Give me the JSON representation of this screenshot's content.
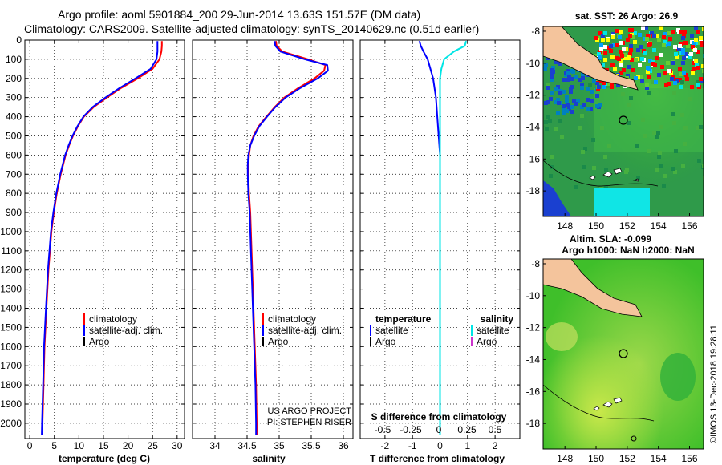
{
  "title": {
    "line1": "Argo profile: aoml 5901884_200 29-Jun-2014 13.63S 151.57E (DM data)",
    "line2": "Climatology: CARS2009. Satellite-adjusted climatology: synTS_20140629.nc (0.51d earlier)"
  },
  "depth_ticks": [
    "0",
    "100",
    "200",
    "300",
    "400",
    "500",
    "600",
    "700",
    "800",
    "900",
    "1000",
    "1100",
    "1200",
    "1300",
    "1400",
    "1500",
    "1600",
    "1700",
    "1800",
    "1900",
    "2000"
  ],
  "colors": {
    "climatology": "#ff0000",
    "satellite": "#0000ff",
    "argo": "#000000",
    "s_satellite": "#00e5e5",
    "s_argo": "#cc33cc",
    "land": "#f4c49c"
  },
  "chart_data": [
    {
      "type": "line",
      "name": "temperature-panel",
      "xlabel": "temperature (deg C)",
      "xlim": [
        -1,
        31.5
      ],
      "ylim": [
        2080,
        0
      ],
      "xticks": [
        "0",
        "5",
        "10",
        "15",
        "20",
        "25",
        "30"
      ],
      "xtick_values": [
        0,
        5,
        10,
        15,
        20,
        25,
        30
      ],
      "legend": [
        "climatology",
        "satellite-adj. clim.",
        "Argo"
      ],
      "depth": [
        5,
        30,
        60,
        100,
        150,
        200,
        250,
        300,
        350,
        400,
        450,
        500,
        550,
        600,
        700,
        800,
        900,
        1000,
        1200,
        1400,
        1600,
        1800,
        2000,
        2060
      ],
      "series": [
        {
          "name": "climatology",
          "color": "#ff0000",
          "values": [
            26.9,
            26.9,
            26.8,
            26.4,
            25.0,
            22.0,
            18.6,
            15.7,
            13.0,
            11.0,
            9.8,
            8.8,
            8.0,
            7.3,
            6.3,
            5.5,
            4.9,
            4.4,
            3.8,
            3.4,
            3.0,
            2.8,
            2.6,
            2.55
          ]
        },
        {
          "name": "satellite-adj. clim.",
          "color": "#0000ff",
          "values": [
            26.0,
            26.0,
            26.0,
            25.8,
            24.6,
            21.5,
            18.3,
            15.4,
            12.8,
            10.9,
            9.7,
            8.7,
            7.9,
            7.2,
            6.2,
            5.4,
            4.8,
            4.3,
            3.7,
            3.3,
            2.9,
            2.7,
            2.5,
            2.45
          ]
        }
      ]
    },
    {
      "type": "line",
      "name": "salinity-panel",
      "xlabel": "salinity",
      "xlim": [
        33.65,
        36.15
      ],
      "ylim": [
        2080,
        0
      ],
      "xticks": [
        "34",
        "34.5",
        "35",
        "35.5",
        "36"
      ],
      "xtick_values": [
        34,
        34.5,
        35,
        35.5,
        36
      ],
      "legend": [
        "climatology",
        "satellite-adj. clim.",
        "Argo"
      ],
      "annotation": [
        "US ARGO PROJECT",
        "PI: STEPHEN RISER"
      ],
      "depth": [
        5,
        30,
        60,
        100,
        130,
        160,
        200,
        250,
        300,
        350,
        400,
        450,
        500,
        550,
        600,
        650,
        700,
        800,
        900,
        1000,
        1200,
        1400,
        1600,
        1800,
        2000,
        2060
      ],
      "series": [
        {
          "name": "climatology",
          "color": "#ff0000",
          "values": [
            34.95,
            34.96,
            35.05,
            35.45,
            35.72,
            35.7,
            35.55,
            35.3,
            35.08,
            34.93,
            34.8,
            34.68,
            34.6,
            34.55,
            34.53,
            34.52,
            34.52,
            34.53,
            34.55,
            34.56,
            34.58,
            34.6,
            34.62,
            34.64,
            34.65,
            34.65
          ]
        },
        {
          "name": "satellite-adj. clim.",
          "color": "#0000ff",
          "values": [
            34.93,
            34.94,
            35.02,
            35.4,
            35.75,
            35.76,
            35.6,
            35.33,
            35.1,
            34.94,
            34.81,
            34.69,
            34.61,
            34.55,
            34.52,
            34.51,
            34.51,
            34.52,
            34.54,
            34.55,
            34.57,
            34.59,
            34.61,
            34.63,
            34.64,
            34.64
          ]
        }
      ]
    },
    {
      "type": "line",
      "name": "difference-panel",
      "xlabel": "T difference from climatology",
      "top_axis_label": "S difference from climatology",
      "xlim": [
        -2.9,
        2.9
      ],
      "ylim": [
        2080,
        0
      ],
      "xticks": [
        "-2",
        "-1",
        "0",
        "1",
        "2"
      ],
      "xtick_values": [
        -2,
        -1,
        0,
        1,
        2
      ],
      "top_ticks": [
        "-0.5",
        "-0.25",
        "0",
        "0.25",
        "0.5"
      ],
      "top_tick_values": [
        -0.5,
        -0.25,
        0,
        0.25,
        0.5
      ],
      "legend_left": [
        "temperature",
        "satellite",
        "Argo"
      ],
      "legend_right": [
        "salinity",
        "satellite",
        "Argo"
      ],
      "depth": [
        5,
        30,
        60,
        100,
        150,
        200,
        300,
        400,
        500,
        600,
        700,
        800,
        900,
        1000,
        1200,
        1400,
        1600,
        1800,
        2000,
        2060
      ],
      "series": [
        {
          "name": "T satellite",
          "color": "#0000ff",
          "values": [
            -0.75,
            -0.7,
            -0.6,
            -0.45,
            -0.35,
            -0.25,
            -0.15,
            -0.1,
            -0.05,
            0.0,
            0.0,
            0.0,
            0.0,
            0.0,
            0.0,
            0.0,
            0.0,
            0.0,
            0.0,
            0.0
          ]
        },
        {
          "name": "S satellite",
          "color": "#00e5e5",
          "values": [
            0.95,
            0.9,
            0.5,
            0.15,
            0.05,
            0.0,
            0.0,
            0.0,
            0.0,
            0.0,
            0.0,
            0.0,
            0.0,
            0.0,
            0.0,
            0.0,
            0.0,
            0.0,
            0.0,
            0.0
          ]
        }
      ]
    },
    {
      "type": "heatmap",
      "name": "sst-map",
      "title": "sat. SST: 26 Argo: 26.9",
      "xticks": [
        "148",
        "150",
        "152",
        "154",
        "156"
      ],
      "xtick_values": [
        148,
        150,
        152,
        154,
        156
      ],
      "yticks": [
        "-8",
        "-10",
        "-12",
        "-14",
        "-16",
        "-18"
      ],
      "ytick_values": [
        -8,
        -10,
        -12,
        -14,
        -16,
        -18
      ],
      "xlim": [
        146.6,
        156.9
      ],
      "ylim": [
        -19.6,
        -7.7
      ],
      "argo_position": [
        151.57,
        -13.63
      ]
    },
    {
      "type": "heatmap",
      "name": "sla-map",
      "title": "Altim. SLA: -0.099",
      "subtitle": "Argo h1000: NaN h2000: NaN",
      "xticks": [
        "148",
        "150",
        "152",
        "154",
        "156"
      ],
      "xtick_values": [
        148,
        150,
        152,
        154,
        156
      ],
      "yticks": [
        "-8",
        "-10",
        "-12",
        "-14",
        "-16",
        "-18"
      ],
      "ytick_values": [
        -8,
        -10,
        -12,
        -14,
        -16,
        -18
      ],
      "xlim": [
        146.6,
        156.9
      ],
      "ylim": [
        -19.6,
        -7.7
      ],
      "argo_position": [
        151.57,
        -13.63
      ]
    }
  ],
  "credit": "©IMOS 13-Dec-2018 19:28:11"
}
